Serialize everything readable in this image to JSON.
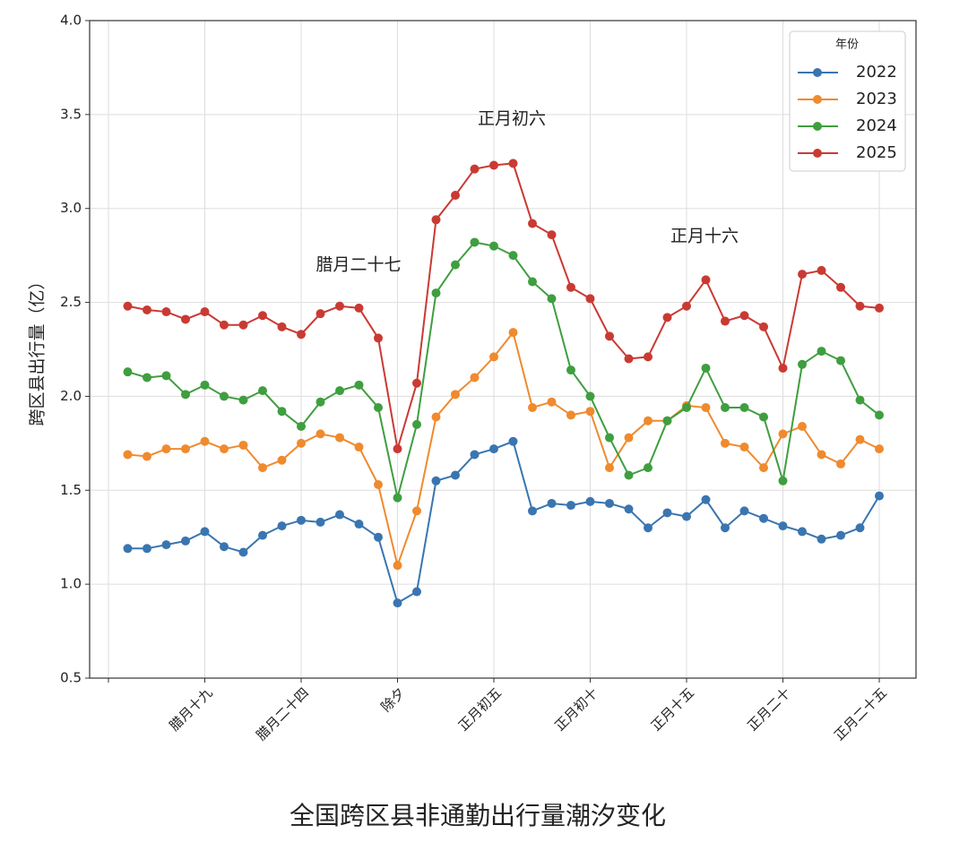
{
  "chart_data": {
    "type": "line",
    "title": "全国跨区县非通勤出行量潮汐变化",
    "ylabel": "跨区县出行量（亿）",
    "legend_title": "年份",
    "legend": "upper right",
    "grid": true,
    "categories": [
      null,
      null,
      null,
      null,
      null,
      "腊月十九",
      null,
      null,
      null,
      null,
      "腊月二十四",
      null,
      null,
      null,
      null,
      "除夕",
      null,
      null,
      null,
      null,
      "正月初五",
      null,
      null,
      null,
      null,
      "正月初十",
      null,
      null,
      null,
      null,
      "正月十五",
      null,
      null,
      null,
      null,
      "正月二十",
      null,
      null,
      null,
      null,
      "正月二十五"
    ],
    "ylim": [
      0.5,
      4.0
    ],
    "yticks": [
      0.5,
      {
        "value": 1,
        "label": "1.0"
      },
      1.5,
      {
        "value": 2,
        "label": "2.0"
      },
      2.5,
      {
        "value": 3,
        "label": "3.0"
      },
      3.5,
      {
        "value": 4,
        "label": "4.0"
      }
    ],
    "annotations": [
      "腊月二十七",
      "正月初六",
      "正月十六"
    ],
    "series": [
      {
        "name": "2022",
        "color": "#3a75b0",
        "values": [
          null,
          1.19,
          1.19,
          1.21,
          1.23,
          1.28,
          1.2,
          1.17,
          1.26,
          1.31,
          1.34,
          1.33,
          1.37,
          1.32,
          1.25,
          0.9,
          0.96,
          1.55,
          1.58,
          1.69,
          1.72,
          1.76,
          1.39,
          1.43,
          1.42,
          1.44,
          1.43,
          1.4,
          1.3,
          1.38,
          1.36,
          1.45,
          1.3,
          1.39,
          1.35,
          1.31,
          1.28,
          1.24,
          1.26,
          1.3,
          1.47
        ]
      },
      {
        "name": "2023",
        "color": "#ef8a2e",
        "values": [
          null,
          1.69,
          1.68,
          1.72,
          1.72,
          1.76,
          1.72,
          1.74,
          1.62,
          1.66,
          1.75,
          1.8,
          1.78,
          1.73,
          1.53,
          1.1,
          1.39,
          1.89,
          2.01,
          2.1,
          2.21,
          2.34,
          1.94,
          1.97,
          1.9,
          1.92,
          1.62,
          1.78,
          1.87,
          1.87,
          1.95,
          1.94,
          1.75,
          1.73,
          1.62,
          1.8,
          1.84,
          1.69,
          1.64,
          1.77,
          1.72
        ]
      },
      {
        "name": "2024",
        "color": "#3f9e3f",
        "values": [
          null,
          2.13,
          2.1,
          2.11,
          2.01,
          2.06,
          2.0,
          1.98,
          2.03,
          1.92,
          1.84,
          1.97,
          2.03,
          2.06,
          1.94,
          1.46,
          1.85,
          2.55,
          2.7,
          2.82,
          2.8,
          2.75,
          2.61,
          2.52,
          2.14,
          2.0,
          1.78,
          1.58,
          1.62,
          1.87,
          1.94,
          2.15,
          1.94,
          1.94,
          1.89,
          1.55,
          2.17,
          2.24,
          2.19,
          1.98,
          1.9
        ]
      },
      {
        "name": "2025",
        "color": "#c93a33",
        "values": [
          null,
          2.48,
          2.46,
          2.45,
          2.41,
          2.45,
          2.38,
          2.38,
          2.43,
          2.37,
          2.33,
          2.44,
          2.48,
          2.47,
          2.31,
          1.72,
          2.07,
          2.94,
          3.07,
          3.21,
          3.23,
          3.24,
          2.92,
          2.86,
          2.58,
          2.52,
          2.32,
          2.2,
          2.21,
          2.42,
          2.48,
          2.62,
          2.4,
          2.43,
          2.37,
          2.15,
          2.65,
          2.67,
          2.58,
          2.48,
          2.47
        ]
      }
    ]
  }
}
